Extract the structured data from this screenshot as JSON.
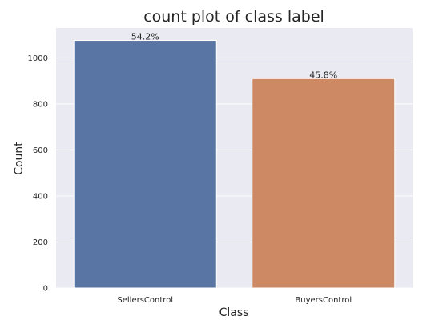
{
  "chart_data": {
    "type": "bar",
    "title": "count plot of class label",
    "xlabel": "Class",
    "ylabel": "Count",
    "categories": [
      "SellersControl",
      "BuyersControl"
    ],
    "values": [
      1076,
      910
    ],
    "bar_labels": [
      "54.2%",
      "45.8%"
    ],
    "colors": [
      "#5975a4",
      "#cc8963"
    ],
    "ylim": [
      0,
      1130
    ],
    "yticks": [
      0,
      200,
      400,
      600,
      800,
      1000
    ],
    "grid": true,
    "background": "#eaeaf2"
  }
}
